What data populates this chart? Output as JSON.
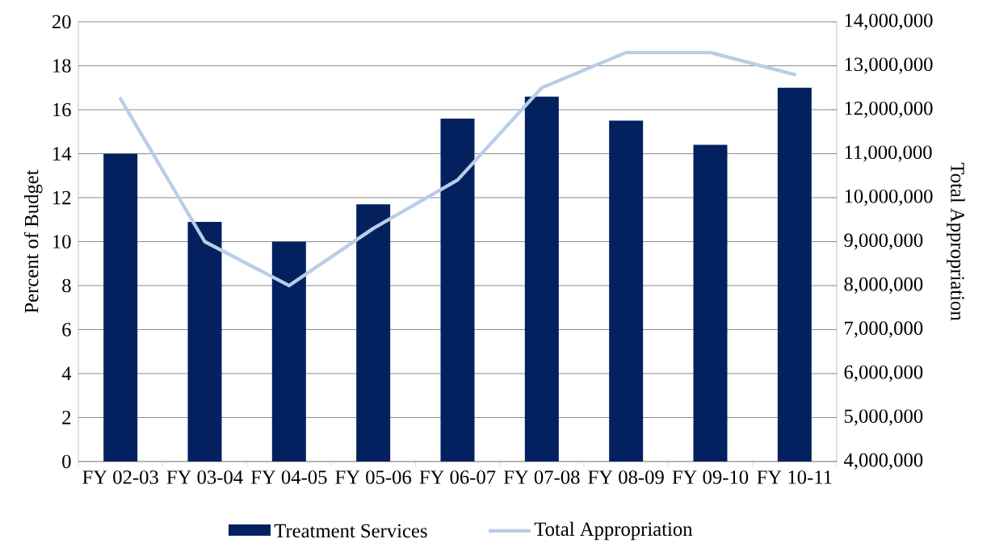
{
  "chart_data": {
    "type": "bar",
    "categories": [
      "FY 02-03",
      "FY 03-04",
      "FY 04-05",
      "FY 05-06",
      "FY 06-07",
      "FY 07-08",
      "FY 08-09",
      "FY 09-10",
      "FY 10-11"
    ],
    "ylabel": "Percent of Budget",
    "y2label": "Total Appropriation",
    "ylim": [
      0,
      20
    ],
    "yticks": [
      0,
      2,
      4,
      6,
      8,
      10,
      12,
      14,
      16,
      18,
      20
    ],
    "y2lim": [
      4000000,
      14000000
    ],
    "y2ticks": [
      {
        "value": 4000000,
        "label": "4,000,000"
      },
      {
        "value": 5000000,
        "label": "5,000,000"
      },
      {
        "value": 6000000,
        "label": "6,000,000"
      },
      {
        "value": 7000000,
        "label": "7,000,000"
      },
      {
        "value": 8000000,
        "label": "8,000,000"
      },
      {
        "value": 9000000,
        "label": "9,000,000"
      },
      {
        "value": 10000000,
        "label": "10,000,000"
      },
      {
        "value": 11000000,
        "label": "11,000,000"
      },
      {
        "value": 12000000,
        "label": "12,000,000"
      },
      {
        "value": 13000000,
        "label": "13,000,000"
      },
      {
        "value": 14000000,
        "label": "14,000,000"
      }
    ],
    "grid": "y",
    "legend": "bottom",
    "series": [
      {
        "name": "Treatment Services",
        "color": "#03215f",
        "values": [
          14.0,
          10.9,
          10.0,
          11.7,
          15.6,
          16.6,
          15.5,
          14.4,
          17.0
        ]
      },
      {
        "name": "Total Appropriation",
        "type": "line",
        "axis": "y2",
        "color": "#b9cde5",
        "values": [
          12250000,
          9000000,
          8000000,
          9300000,
          10400000,
          12500000,
          13300000,
          13300000,
          12800000
        ]
      }
    ]
  }
}
